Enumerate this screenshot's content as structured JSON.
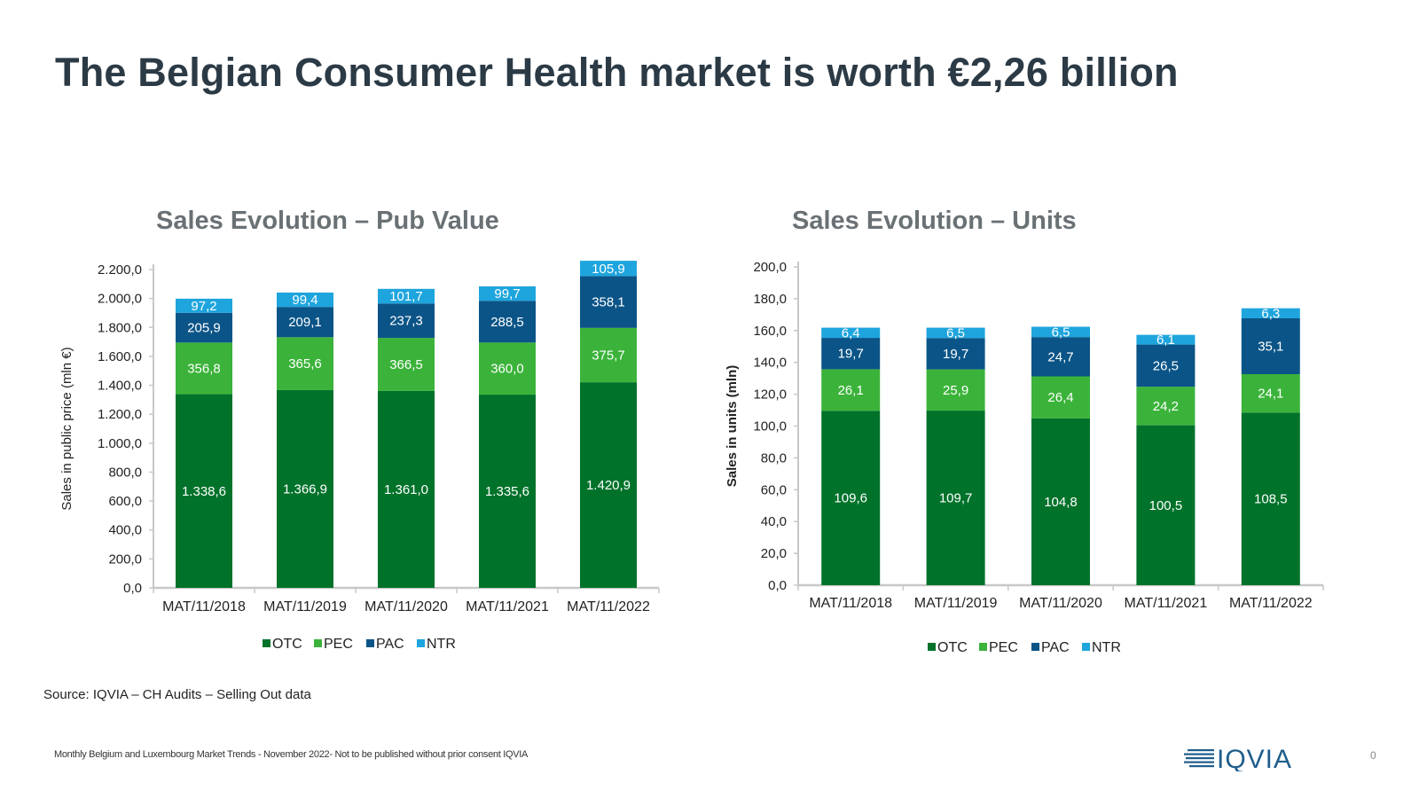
{
  "slide": {
    "title": "The Belgian Consumer Health market is worth €2,26 billion",
    "source": "Source: IQVIA – CH Audits – Selling Out data",
    "footer": "Monthly Belgium and Luxembourg Market Trends - November 2022- Not to be published without prior consent IQVIA",
    "logo_text": "IQVIA",
    "page_number": "0"
  },
  "colors": {
    "OTC": "#00722a",
    "PEC": "#3bb33a",
    "PAC": "#0b5487",
    "NTR": "#1ea5dd",
    "axis": "#c8c8c8",
    "title": "#2b3a45",
    "chart_title": "#6a7175",
    "logo": "#1f5d8c"
  },
  "chart_data": [
    {
      "type": "bar",
      "stacked": true,
      "title": "Sales Evolution – Pub Value",
      "xlabel": "",
      "ylabel": "Sales in public price (mln €)",
      "ylim": [
        0,
        2200
      ],
      "ytick_step": 200,
      "ytick_labels": [
        "0,0",
        "200,0",
        "400,0",
        "600,0",
        "800,0",
        "1.000,0",
        "1.200,0",
        "1.400,0",
        "1.600,0",
        "1.800,0",
        "2.000,0",
        "2.200,0"
      ],
      "categories": [
        "MAT/11/2018",
        "MAT/11/2019",
        "MAT/11/2020",
        "MAT/11/2021",
        "MAT/11/2022"
      ],
      "series": [
        {
          "name": "OTC",
          "values": [
            1338.6,
            1366.9,
            1361.0,
            1335.6,
            1420.9
          ],
          "labels": [
            "1.338,6",
            "1.366,9",
            "1.361,0",
            "1.335,6",
            "1.420,9"
          ]
        },
        {
          "name": "PEC",
          "values": [
            356.8,
            365.6,
            366.5,
            360.0,
            375.7
          ],
          "labels": [
            "356,8",
            "365,6",
            "366,5",
            "360,0",
            "375,7"
          ]
        },
        {
          "name": "PAC",
          "values": [
            205.9,
            209.1,
            237.3,
            288.5,
            358.1
          ],
          "labels": [
            "205,9",
            "209,1",
            "237,3",
            "288,5",
            "358,1"
          ]
        },
        {
          "name": "NTR",
          "values": [
            97.2,
            99.4,
            101.7,
            99.7,
            105.9
          ],
          "labels": [
            "97,2",
            "99,4",
            "101,7",
            "99,7",
            "105,9"
          ]
        }
      ],
      "legend": "bottom",
      "grid": false
    },
    {
      "type": "bar",
      "stacked": true,
      "title": "Sales Evolution – Units",
      "xlabel": "",
      "ylabel": "Sales in units (mln)",
      "ylim": [
        0,
        200
      ],
      "ytick_step": 20,
      "ytick_labels": [
        "0,0",
        "20,0",
        "40,0",
        "60,0",
        "80,0",
        "100,0",
        "120,0",
        "140,0",
        "160,0",
        "180,0",
        "200,0"
      ],
      "categories": [
        "MAT/11/2018",
        "MAT/11/2019",
        "MAT/11/2020",
        "MAT/11/2021",
        "MAT/11/2022"
      ],
      "series": [
        {
          "name": "OTC",
          "values": [
            109.6,
            109.7,
            104.8,
            100.5,
            108.5
          ],
          "labels": [
            "109,6",
            "109,7",
            "104,8",
            "100,5",
            "108,5"
          ]
        },
        {
          "name": "PEC",
          "values": [
            26.1,
            25.9,
            26.4,
            24.2,
            24.1
          ],
          "labels": [
            "26,1",
            "25,9",
            "26,4",
            "24,2",
            "24,1"
          ]
        },
        {
          "name": "PAC",
          "values": [
            19.7,
            19.7,
            24.7,
            26.5,
            35.1
          ],
          "labels": [
            "19,7",
            "19,7",
            "24,7",
            "26,5",
            "35,1"
          ]
        },
        {
          "name": "NTR",
          "values": [
            6.4,
            6.5,
            6.5,
            6.1,
            6.3
          ],
          "labels": [
            "6,4",
            "6,5",
            "6,5",
            "6,1",
            "6,3"
          ]
        }
      ],
      "legend": "bottom",
      "grid": false
    }
  ]
}
